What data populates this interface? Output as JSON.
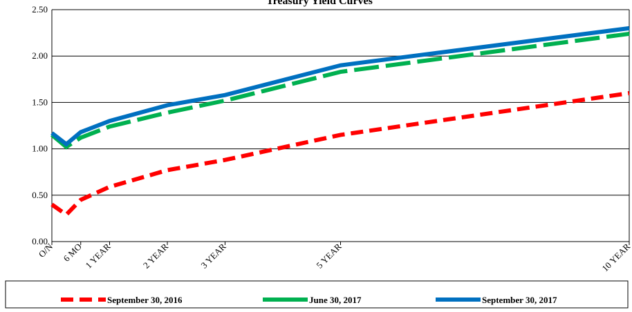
{
  "chart_data": {
    "type": "line",
    "title": "Treasury Yield Curves",
    "x": [
      0,
      3,
      6,
      12,
      24,
      36,
      60,
      120
    ],
    "xlim": [
      0,
      120
    ],
    "xticks": [
      {
        "value": 0,
        "label": "O/N"
      },
      {
        "value": 6,
        "label": "6 MO"
      },
      {
        "value": 12,
        "label": "1 YEAR"
      },
      {
        "value": 24,
        "label": "2 YEAR"
      },
      {
        "value": 36,
        "label": "3 YEAR"
      },
      {
        "value": 60,
        "label": "5 YEAR"
      },
      {
        "value": 120,
        "label": "10 YEAR"
      }
    ],
    "ylim": [
      0,
      2.5
    ],
    "yticks": [
      {
        "value": 0,
        "label": "0.00"
      },
      {
        "value": 0.5,
        "label": "0.50"
      },
      {
        "value": 1,
        "label": "1.00"
      },
      {
        "value": 1.5,
        "label": "1.50"
      },
      {
        "value": 2,
        "label": "2.00"
      },
      {
        "value": 2.5,
        "label": "2.50"
      }
    ],
    "grid": true,
    "legend": "bottom",
    "series": [
      {
        "name": "September 30, 2016",
        "color": "#ff0000",
        "dash": "dashed",
        "values": [
          0.4,
          0.29,
          0.45,
          0.59,
          0.77,
          0.88,
          1.15,
          1.6
        ]
      },
      {
        "name": "June 30, 2017",
        "color": "#00b050",
        "dash": "long-dashed",
        "values": [
          1.15,
          1.02,
          1.12,
          1.24,
          1.39,
          1.52,
          1.83,
          2.24
        ]
      },
      {
        "name": "September 30, 2017",
        "color": "#0070c0",
        "dash": "solid",
        "values": [
          1.17,
          1.05,
          1.18,
          1.3,
          1.47,
          1.58,
          1.9,
          2.3
        ]
      }
    ]
  }
}
